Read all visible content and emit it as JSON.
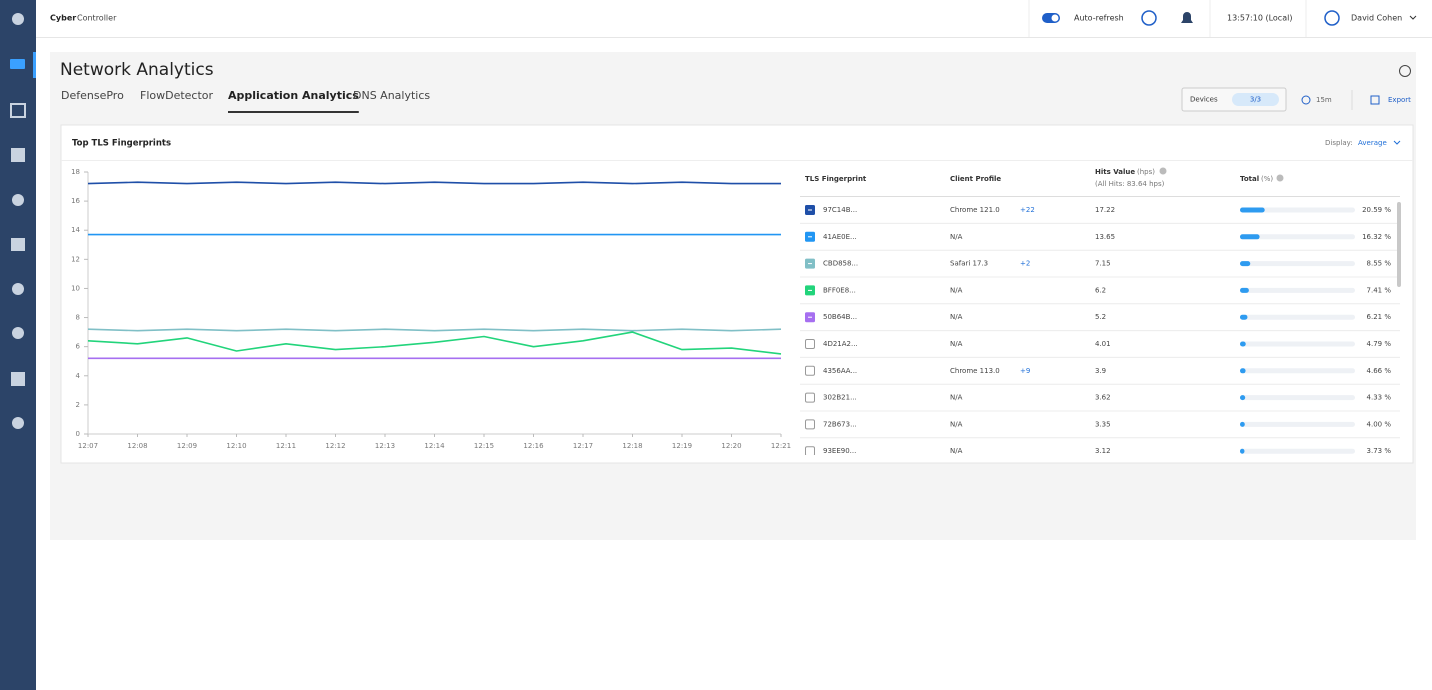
{
  "header": {
    "brand_bold": "Cyber",
    "brand": "Controller",
    "auto_refresh": "Auto-refresh",
    "time": "13:57:10 (Local)",
    "user": "David Cohen"
  },
  "page": {
    "title": "Network Analytics",
    "tabs": [
      "DefensePro",
      "FlowDetector",
      "Application Analytics",
      "DNS Analytics"
    ],
    "active_tab": 2,
    "devices_label": "Devices",
    "devices": "3/3",
    "range": "15m",
    "export": "Export"
  },
  "card": {
    "title": "Top TLS Fingerprints",
    "display_label": "Display:",
    "display": "Average"
  },
  "chart_data": {
    "type": "line",
    "categories": [
      "12:07",
      "12:08",
      "12:09",
      "12:10",
      "12:11",
      "12:12",
      "12:13",
      "12:14",
      "12:15",
      "12:16",
      "12:17",
      "12:18",
      "12:19",
      "12:20",
      "12:21"
    ],
    "ylim": [
      0,
      18
    ],
    "yticks": [
      0,
      2,
      4,
      6,
      8,
      10,
      12,
      14,
      16,
      18
    ],
    "series": [
      {
        "color": "#1f4fa8",
        "values": [
          17.2,
          17.3,
          17.2,
          17.3,
          17.2,
          17.3,
          17.2,
          17.3,
          17.2,
          17.2,
          17.3,
          17.2,
          17.3,
          17.2,
          17.2
        ]
      },
      {
        "color": "#2196f3",
        "values": [
          13.7,
          13.7,
          13.7,
          13.7,
          13.7,
          13.7,
          13.7,
          13.7,
          13.7,
          13.7,
          13.7,
          13.7,
          13.7,
          13.7,
          13.7
        ]
      },
      {
        "color": "#80bfc6",
        "values": [
          7.2,
          7.1,
          7.2,
          7.1,
          7.2,
          7.1,
          7.2,
          7.1,
          7.2,
          7.1,
          7.2,
          7.1,
          7.2,
          7.1,
          7.2
        ]
      },
      {
        "color": "#22d47b",
        "values": [
          6.4,
          6.2,
          6.6,
          5.7,
          6.2,
          5.8,
          6.0,
          6.3,
          6.7,
          6.0,
          6.4,
          7.0,
          5.8,
          5.9,
          5.5
        ]
      },
      {
        "color": "#a66ff0",
        "values": [
          5.2,
          5.2,
          5.2,
          5.2,
          5.2,
          5.2,
          5.2,
          5.2,
          5.2,
          5.2,
          5.2,
          5.2,
          5.2,
          5.2,
          5.2
        ]
      }
    ]
  },
  "table": {
    "headers": {
      "fingerprint": "TLS Fingerprint",
      "profile": "Client Profile",
      "hits": "Hits Value",
      "hits_unit": "(hps)",
      "hits_sub": "(All Hits: 83.64 hps)",
      "total": "Total",
      "total_unit": "(%)"
    },
    "rows": [
      {
        "fingerprint": "97C14B...",
        "profile": "Chrome 121.0",
        "more": "+22",
        "hits": 17.22,
        "total": {
          "value": 20.59,
          "label": "20.59 %"
        }
      },
      {
        "fingerprint": "41AE0E...",
        "profile": "N/A",
        "hits": 13.65,
        "total": {
          "value": 16.32,
          "label": "16.32 %"
        }
      },
      {
        "fingerprint": "CBD858...",
        "profile": "Safari 17.3",
        "more": "+2",
        "hits": 7.15,
        "total": {
          "value": 8.55,
          "label": "8.55 %"
        }
      },
      {
        "fingerprint": "BFF0E8...",
        "profile": "N/A",
        "hits": 6.2,
        "total": {
          "value": 7.41,
          "label": "7.41 %"
        }
      },
      {
        "fingerprint": "50B64B...",
        "profile": "N/A",
        "hits": 5.2,
        "total": {
          "value": 6.21,
          "label": "6.21 %"
        }
      },
      {
        "fingerprint": "4D21A2...",
        "profile": "N/A",
        "hits": 4.01,
        "total": {
          "value": 4.79,
          "label": "4.79 %"
        }
      },
      {
        "fingerprint": "4356AA...",
        "profile": "Chrome 113.0",
        "more": "+9",
        "hits": 3.9,
        "total": {
          "value": 4.66,
          "label": "4.66 %"
        }
      },
      {
        "fingerprint": "302B21...",
        "profile": "N/A",
        "hits": 3.62,
        "total": {
          "value": 4.33,
          "label": "4.33 %"
        }
      },
      {
        "fingerprint": "72B673...",
        "profile": "N/A",
        "hits": 3.35,
        "total": {
          "value": 4.0,
          "label": "4.00 %"
        }
      },
      {
        "fingerprint": "93EE90...",
        "profile": "N/A",
        "hits": 3.12,
        "total": {
          "value": 3.73,
          "label": "3.73 %"
        }
      }
    ]
  }
}
